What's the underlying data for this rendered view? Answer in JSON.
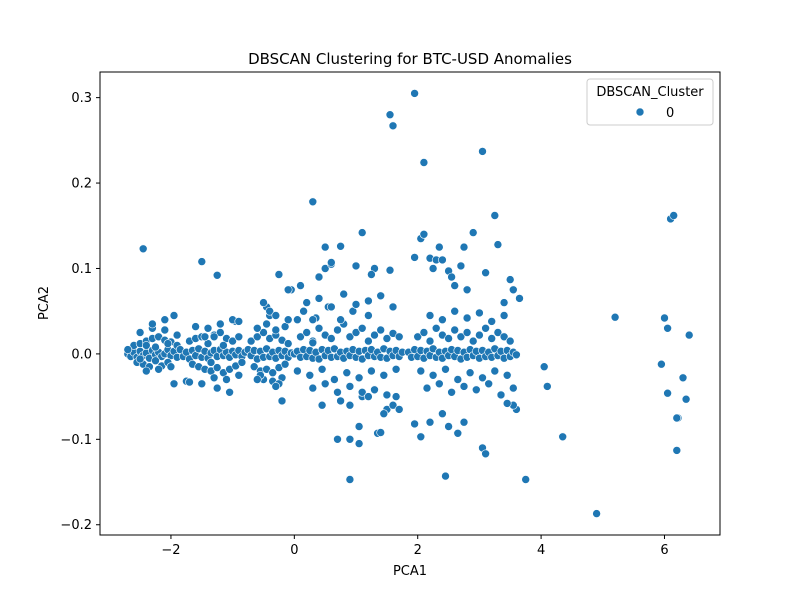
{
  "chart_data": {
    "type": "scatter",
    "title": "DBSCAN Clustering for BTC-USD Anomalies",
    "xlabel": "PCA1",
    "ylabel": "PCA2",
    "xlim": [
      -3.15,
      6.9
    ],
    "ylim": [
      -0.212,
      0.33
    ],
    "xticks": [
      -2,
      0,
      2,
      4,
      6
    ],
    "xtick_labels": [
      "−2",
      "0",
      "2",
      "4",
      "6"
    ],
    "yticks": [
      -0.2,
      -0.1,
      0.0,
      0.1,
      0.2,
      0.3
    ],
    "ytick_labels": [
      "−0.2",
      "−0.1",
      "0.0",
      "0.1",
      "0.2",
      "0.3"
    ],
    "grid": false,
    "legend": {
      "title": "DBSCAN_Cluster",
      "placement": "top-right",
      "entries": [
        "0"
      ]
    },
    "series": [
      {
        "name": "0",
        "color": "#1f77b4",
        "x": [
          -2.7,
          -2.65,
          -2.6,
          -2.55,
          -2.5,
          -2.45,
          -2.4,
          -2.35,
          -2.3,
          -2.25,
          -2.2,
          -2.15,
          -2.1,
          -2.05,
          -2.0,
          -1.95,
          -1.9,
          -2.6,
          -2.5,
          -2.4,
          -2.3,
          -2.2,
          -2.1,
          -2.0,
          -1.9,
          -2.55,
          -2.45,
          -2.35,
          -2.25,
          -2.15,
          -2.05,
          -2.7,
          -2.5,
          -2.3,
          -2.1,
          -1.9,
          -2.4,
          -2.2,
          -2.0,
          -2.3,
          -2.1,
          -1.95,
          -2.5,
          -2.25,
          -2.05,
          -1.85,
          -1.8,
          -1.75,
          -1.7,
          -1.65,
          -1.6,
          -1.55,
          -1.5,
          -1.45,
          -1.4,
          -1.35,
          -1.3,
          -1.25,
          -1.2,
          -1.15,
          -1.1,
          -1.05,
          -1.0,
          -0.95,
          -0.9,
          -0.85,
          -0.8,
          -1.7,
          -1.6,
          -1.5,
          -1.4,
          -1.3,
          -1.2,
          -1.1,
          -1.0,
          -0.9,
          -1.65,
          -1.55,
          -1.45,
          -1.35,
          -1.25,
          -1.15,
          -1.05,
          -0.95,
          -0.85,
          -1.75,
          -1.5,
          -1.3,
          -1.1,
          -0.9,
          -1.4,
          -1.2,
          -1.0,
          -1.6,
          -1.25,
          -1.05,
          -0.95,
          -1.35,
          -1.15,
          -0.75,
          -0.7,
          -0.65,
          -0.6,
          -0.55,
          -0.5,
          -0.45,
          -0.4,
          -0.35,
          -0.3,
          -0.25,
          -0.2,
          -0.15,
          -0.1,
          -0.05,
          -0.7,
          -0.6,
          -0.5,
          -0.4,
          -0.3,
          -0.2,
          -0.1,
          -0.65,
          -0.55,
          -0.45,
          -0.35,
          -0.25,
          -0.15,
          -0.6,
          -0.45,
          -0.3,
          -0.15,
          -0.5,
          -0.35,
          -0.2,
          -0.55,
          -0.4,
          -0.25,
          -0.1,
          -0.45,
          -0.3,
          0.0,
          0.05,
          0.1,
          0.15,
          0.2,
          0.25,
          0.3,
          0.35,
          0.4,
          0.45,
          0.5,
          0.55,
          0.6,
          0.65,
          0.7,
          0.75,
          0.8,
          0.85,
          0.9,
          0.95,
          1.0,
          1.05,
          1.1,
          1.15,
          1.2,
          1.25,
          1.3,
          1.35,
          1.4,
          1.45,
          1.5,
          1.55,
          1.6,
          1.65,
          1.7,
          1.75,
          0.1,
          0.2,
          0.3,
          0.4,
          0.5,
          0.6,
          0.7,
          0.8,
          0.9,
          1.0,
          1.1,
          1.2,
          1.3,
          1.4,
          1.5,
          1.6,
          1.7,
          0.05,
          0.25,
          0.45,
          0.65,
          0.85,
          1.05,
          1.25,
          1.45,
          1.65,
          0.3,
          0.5,
          0.7,
          0.9,
          1.1,
          1.3,
          1.5,
          1.2,
          0.95,
          0.75,
          0.55,
          0.35,
          0.15,
          0.2,
          0.4,
          0.6,
          0.8,
          1.0,
          1.2,
          1.4,
          1.6,
          1.85,
          1.9,
          1.95,
          2.0,
          2.05,
          2.1,
          2.15,
          2.2,
          2.25,
          2.3,
          2.35,
          2.4,
          2.45,
          2.5,
          2.55,
          2.6,
          2.65,
          2.7,
          2.75,
          2.8,
          2.85,
          2.9,
          2.95,
          3.0,
          3.05,
          3.1,
          3.15,
          3.2,
          3.25,
          3.3,
          3.35,
          3.4,
          3.45,
          3.5,
          3.55,
          3.6,
          2.0,
          2.1,
          2.2,
          2.3,
          2.4,
          2.5,
          2.6,
          2.7,
          2.8,
          2.9,
          3.0,
          3.1,
          3.2,
          3.3,
          3.4,
          3.5,
          2.05,
          2.25,
          2.45,
          2.65,
          2.85,
          3.05,
          3.25,
          3.45,
          2.15,
          2.35,
          2.55,
          2.75,
          2.95,
          3.15,
          3.35,
          3.55,
          2.2,
          2.4,
          2.6,
          2.8,
          3.0,
          3.2,
          3.4,
          -1.95,
          -2.4,
          -1.7,
          -1.45,
          -1.3,
          -1.0,
          -0.9,
          -0.5,
          -0.4,
          -0.3,
          -0.6,
          -0.2,
          -0.05,
          0.05,
          0.1,
          0.3,
          0.4,
          0.5,
          0.6,
          0.75,
          0.9,
          1.0,
          1.1,
          1.2,
          1.3,
          1.5,
          1.6,
          1.7,
          -2.45,
          -1.5,
          -1.25,
          -0.25,
          -0.1,
          0.3,
          0.5,
          0.6,
          0.75,
          1.1,
          1.25,
          1.55,
          1.95,
          2.05,
          2.1,
          2.2,
          2.25,
          2.3,
          2.35,
          2.4,
          2.5,
          2.55,
          2.7,
          2.75,
          2.9,
          3.1,
          3.3,
          3.5,
          3.55,
          3.4,
          2.6,
          2.8,
          1.55,
          1.6,
          1.95,
          2.1,
          3.05,
          3.25,
          3.65,
          4.05,
          4.1,
          4.35,
          4.9,
          5.2,
          5.95,
          6.0,
          6.05,
          6.1,
          6.15,
          6.2,
          6.22,
          6.3,
          6.35,
          6.4,
          6.05,
          6.2,
          0.3,
          0.9,
          0.7,
          0.45,
          1.05,
          1.35,
          1.95,
          2.05,
          2.2,
          2.65,
          2.75,
          3.05,
          3.1,
          3.75,
          2.4,
          2.5,
          3.6,
          3.55,
          3.45,
          1.65,
          1.45
        ],
        "y": [
          0.0,
          -0.003,
          0.002,
          -0.004,
          0.003,
          -0.002,
          0.001,
          -0.005,
          0.004,
          -0.001,
          0.002,
          -0.003,
          0.0,
          0.005,
          -0.002,
          0.003,
          -0.004,
          0.01,
          0.012,
          0.015,
          0.018,
          0.02,
          0.016,
          0.014,
          0.01,
          -0.01,
          -0.012,
          -0.015,
          -0.008,
          -0.014,
          -0.01,
          0.005,
          0.025,
          0.03,
          0.028,
          0.022,
          -0.02,
          -0.018,
          -0.015,
          0.035,
          0.04,
          0.045,
          -0.006,
          0.008,
          0.012,
          0.005,
          -0.003,
          0.002,
          -0.006,
          0.004,
          -0.002,
          0.006,
          -0.004,
          0.003,
          -0.005,
          0.001,
          0.004,
          -0.003,
          0.005,
          -0.002,
          0.002,
          -0.004,
          0.003,
          -0.001,
          0.004,
          -0.003,
          0.002,
          0.015,
          0.018,
          0.02,
          0.012,
          0.022,
          0.025,
          0.018,
          0.015,
          0.02,
          -0.012,
          -0.015,
          -0.018,
          -0.02,
          -0.016,
          -0.022,
          -0.018,
          -0.014,
          -0.01,
          -0.032,
          -0.035,
          -0.028,
          -0.03,
          -0.025,
          0.03,
          0.035,
          0.04,
          0.032,
          -0.04,
          -0.045,
          0.038,
          -0.01,
          0.01,
          0.005,
          -0.002,
          0.004,
          -0.006,
          0.003,
          -0.004,
          0.006,
          -0.003,
          0.002,
          -0.005,
          0.004,
          -0.002,
          0.003,
          -0.004,
          0.001,
          0.015,
          0.02,
          0.025,
          0.018,
          0.022,
          0.016,
          0.012,
          -0.015,
          -0.02,
          -0.018,
          -0.022,
          -0.016,
          -0.012,
          0.03,
          0.035,
          0.028,
          0.032,
          -0.03,
          -0.032,
          -0.028,
          -0.025,
          0.045,
          -0.035,
          0.04,
          0.055,
          -0.038,
          0.0,
          0.003,
          -0.004,
          0.005,
          -0.003,
          0.004,
          -0.005,
          0.002,
          -0.006,
          0.005,
          -0.002,
          0.004,
          -0.004,
          0.006,
          -0.003,
          0.002,
          -0.005,
          0.003,
          -0.002,
          0.005,
          -0.004,
          0.003,
          -0.006,
          0.004,
          -0.002,
          0.005,
          -0.003,
          0.002,
          -0.004,
          0.006,
          -0.005,
          0.003,
          -0.002,
          0.004,
          -0.003,
          0.002,
          0.02,
          0.025,
          0.015,
          0.03,
          0.022,
          0.018,
          0.028,
          0.035,
          0.02,
          0.025,
          0.03,
          0.015,
          0.022,
          0.028,
          0.018,
          0.024,
          0.02,
          -0.02,
          -0.025,
          -0.018,
          -0.03,
          -0.022,
          -0.028,
          -0.02,
          -0.025,
          -0.018,
          -0.04,
          -0.035,
          -0.045,
          -0.038,
          -0.05,
          -0.042,
          -0.048,
          0.045,
          0.05,
          0.04,
          0.055,
          0.042,
          0.05,
          0.06,
          0.065,
          0.055,
          0.07,
          0.058,
          0.062,
          0.068,
          0.055,
          0.002,
          -0.004,
          0.005,
          -0.003,
          0.004,
          -0.005,
          0.003,
          -0.002,
          0.006,
          -0.004,
          0.002,
          -0.005,
          0.003,
          -0.002,
          0.005,
          -0.003,
          0.004,
          -0.006,
          0.002,
          -0.004,
          0.005,
          -0.002,
          0.003,
          -0.005,
          0.004,
          -0.003,
          0.002,
          -0.004,
          0.006,
          -0.002,
          0.003,
          -0.005,
          0.004,
          -0.003,
          0.002,
          -0.001,
          0.02,
          0.025,
          0.015,
          0.03,
          0.022,
          0.018,
          0.028,
          0.02,
          0.025,
          0.015,
          0.022,
          0.03,
          0.018,
          0.025,
          0.02,
          0.015,
          -0.02,
          -0.025,
          -0.018,
          -0.03,
          -0.022,
          -0.028,
          -0.02,
          -0.025,
          -0.04,
          -0.035,
          -0.045,
          -0.038,
          -0.042,
          -0.035,
          -0.048,
          -0.04,
          0.045,
          0.04,
          0.05,
          0.042,
          0.048,
          0.038,
          0.045,
          -0.035,
          0.01,
          -0.033,
          0.02,
          0.02,
          0.04,
          0.038,
          0.06,
          0.05,
          0.045,
          -0.03,
          -0.055,
          0.075,
          0.04,
          0.08,
          0.04,
          0.09,
          0.1,
          0.105,
          -0.055,
          -0.06,
          0.103,
          -0.045,
          -0.05,
          0.1,
          -0.065,
          -0.06,
          -0.065,
          0.123,
          0.108,
          0.092,
          0.093,
          0.075,
          0.178,
          0.125,
          0.107,
          0.126,
          0.142,
          0.093,
          0.098,
          0.113,
          0.135,
          0.14,
          0.112,
          0.1,
          0.11,
          0.125,
          0.11,
          0.097,
          0.09,
          0.103,
          0.125,
          0.142,
          0.095,
          0.128,
          0.087,
          0.075,
          0.06,
          0.08,
          0.075,
          0.28,
          0.267,
          0.305,
          0.224,
          0.237,
          0.162,
          0.065,
          -0.015,
          -0.038,
          -0.097,
          -0.187,
          0.043,
          -0.012,
          0.042,
          -0.046,
          0.158,
          0.162,
          -0.113,
          -0.075,
          -0.028,
          -0.053,
          0.022,
          0.03,
          -0.075,
          0.013,
          -0.1,
          -0.1,
          -0.06,
          -0.085,
          -0.093,
          -0.082,
          -0.097,
          -0.08,
          -0.093,
          -0.08,
          -0.11,
          -0.117,
          -0.147,
          -0.07,
          -0.085,
          -0.065,
          -0.06,
          -0.058,
          -0.05,
          -0.07
        ]
      }
    ],
    "extra_points": {
      "x": [
        0.9,
        1.05,
        1.4,
        2.45
      ],
      "y": [
        -0.147,
        -0.105,
        -0.092,
        -0.143
      ]
    }
  }
}
